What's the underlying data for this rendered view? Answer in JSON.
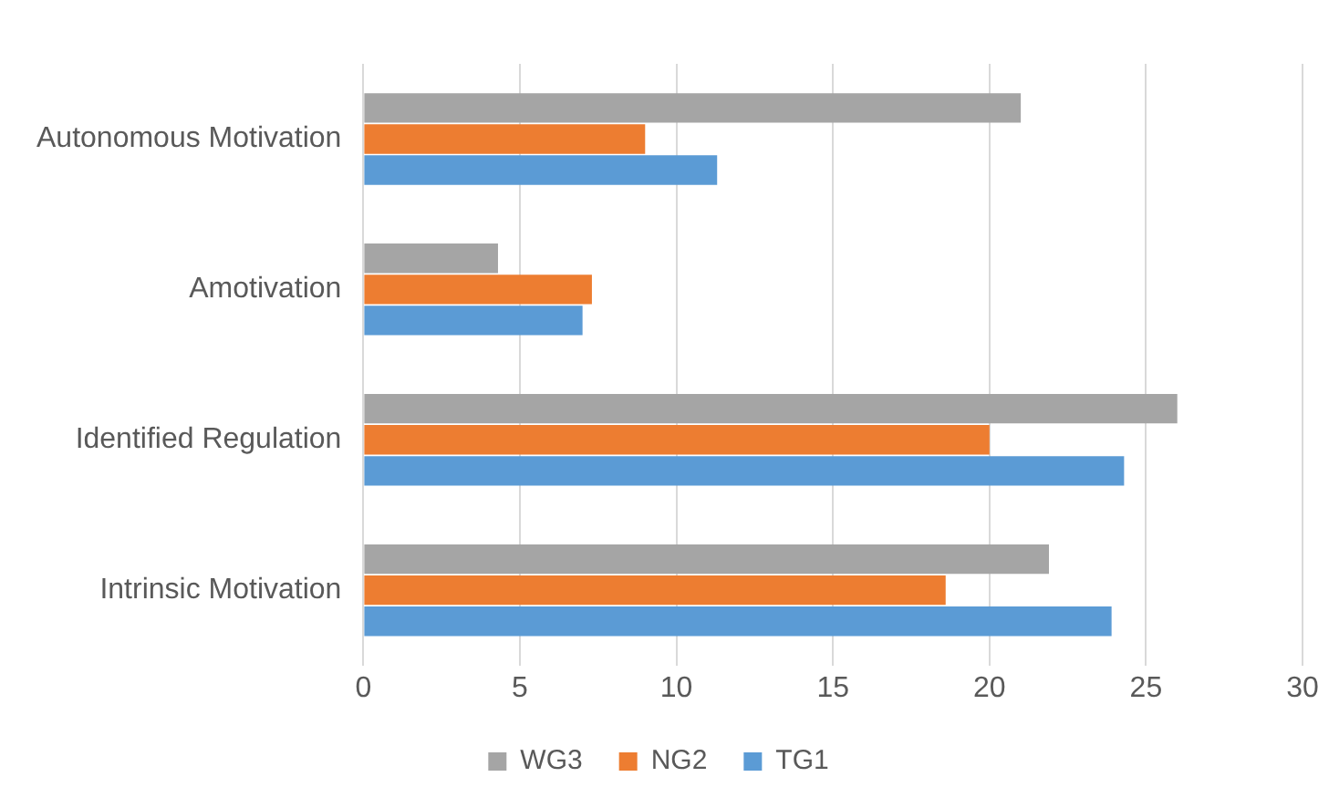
{
  "chart_data": {
    "type": "bar",
    "orientation": "horizontal",
    "categories": [
      "Autonomous Motivation",
      "Amotivation",
      "Identified Regulation",
      "Intrinsic Motivation"
    ],
    "series": [
      {
        "name": "WG3",
        "color": "#a5a5a5",
        "values": [
          21,
          4.3,
          26,
          21.9
        ]
      },
      {
        "name": "NG2",
        "color": "#ed7d31",
        "values": [
          9,
          7.3,
          20,
          18.6
        ]
      },
      {
        "name": "TG1",
        "color": "#5b9bd5",
        "values": [
          11.3,
          7,
          24.3,
          23.9
        ]
      }
    ],
    "xlim": [
      0,
      30
    ],
    "xticks": [
      0,
      5,
      10,
      15,
      20,
      25,
      30
    ],
    "grid": "x",
    "legend": "bottom"
  }
}
